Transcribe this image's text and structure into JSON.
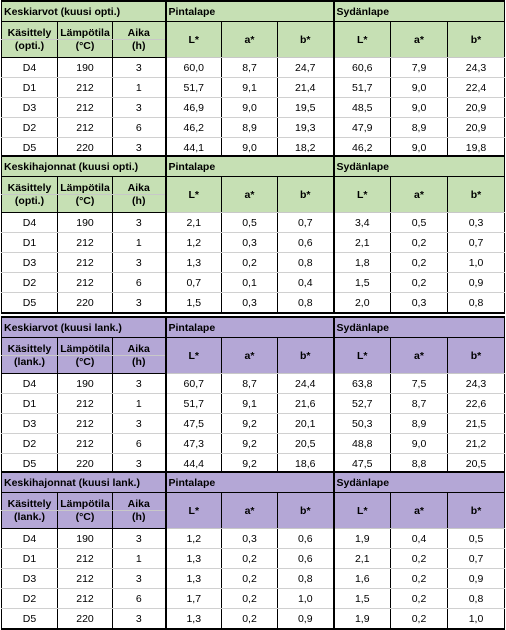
{
  "blocks": [
    {
      "title": "Keskiarvot (kuusi opti.)",
      "group1": "Pintalape",
      "group2": "Sydänlape",
      "col_kasittely": [
        "Käsittely",
        "(opti.)"
      ],
      "col_lampotila": [
        "Lämpötila",
        "(°C)"
      ],
      "col_aika": [
        "Aika",
        "(h)"
      ],
      "metrics": [
        "L*",
        "a*",
        "b*",
        "L*",
        "a*",
        "b*"
      ],
      "rows": [
        [
          "D4",
          "190",
          "3",
          "60,0",
          "8,7",
          "24,7",
          "60,6",
          "7,9",
          "24,3"
        ],
        [
          "D1",
          "212",
          "1",
          "51,7",
          "9,1",
          "21,4",
          "51,7",
          "9,0",
          "22,4"
        ],
        [
          "D3",
          "212",
          "3",
          "46,9",
          "9,0",
          "19,5",
          "48,5",
          "9,0",
          "20,9"
        ],
        [
          "D2",
          "212",
          "6",
          "46,2",
          "8,9",
          "19,3",
          "47,9",
          "8,9",
          "20,9"
        ],
        [
          "D5",
          "220",
          "3",
          "44,1",
          "9,0",
          "18,2",
          "46,2",
          "9,0",
          "19,8"
        ]
      ]
    },
    {
      "title": "Keskihajonnat (kuusi opti.)",
      "group1": "Pintalape",
      "group2": "Sydänlape",
      "col_kasittely": [
        "Käsittely",
        "(opti.)"
      ],
      "col_lampotila": [
        "Lämpötila",
        "(°C)"
      ],
      "col_aika": [
        "Aika",
        "(h)"
      ],
      "metrics": [
        "L*",
        "a*",
        "b*",
        "L*",
        "a*",
        "b*"
      ],
      "rows": [
        [
          "D4",
          "190",
          "3",
          "2,1",
          "0,5",
          "0,7",
          "3,4",
          "0,5",
          "0,3"
        ],
        [
          "D1",
          "212",
          "1",
          "1,2",
          "0,3",
          "0,6",
          "2,1",
          "0,2",
          "0,7"
        ],
        [
          "D3",
          "212",
          "3",
          "1,3",
          "0,2",
          "0,8",
          "1,8",
          "0,2",
          "1,0"
        ],
        [
          "D2",
          "212",
          "6",
          "0,7",
          "0,1",
          "0,4",
          "1,5",
          "0,2",
          "0,9"
        ],
        [
          "D5",
          "220",
          "3",
          "1,5",
          "0,3",
          "0,8",
          "2,0",
          "0,3",
          "0,8"
        ]
      ]
    },
    {
      "title": "Keskiarvot (kuusi lank.)",
      "group1": "Pintalape",
      "group2": "Sydänlape",
      "col_kasittely": [
        "Käsittely",
        "(lank.)"
      ],
      "col_lampotila": [
        "Lämpötila",
        "(°C)"
      ],
      "col_aika": [
        "Aika",
        "(h)"
      ],
      "metrics": [
        "L*",
        "a*",
        "b*",
        "L*",
        "a*",
        "b*"
      ],
      "rows": [
        [
          "D4",
          "190",
          "3",
          "60,7",
          "8,7",
          "24,4",
          "63,8",
          "7,5",
          "24,3"
        ],
        [
          "D1",
          "212",
          "1",
          "51,7",
          "9,1",
          "21,6",
          "52,7",
          "8,7",
          "22,6"
        ],
        [
          "D3",
          "212",
          "3",
          "47,5",
          "9,2",
          "20,1",
          "50,3",
          "8,9",
          "21,5"
        ],
        [
          "D2",
          "212",
          "6",
          "47,3",
          "9,2",
          "20,5",
          "48,8",
          "9,0",
          "21,2"
        ],
        [
          "D5",
          "220",
          "3",
          "44,4",
          "9,2",
          "18,6",
          "47,5",
          "8,8",
          "20,5"
        ]
      ]
    },
    {
      "title": "Keskihajonnat (kuusi lank.)",
      "group1": "Pintalape",
      "group2": "Sydänlape",
      "col_kasittely": [
        "Käsittely",
        "(lank.)"
      ],
      "col_lampotila": [
        "Lämpötila",
        "(°C)"
      ],
      "col_aika": [
        "Aika",
        "(h)"
      ],
      "metrics": [
        "L*",
        "a*",
        "b*",
        "L*",
        "a*",
        "b*"
      ],
      "rows": [
        [
          "D4",
          "190",
          "3",
          "1,2",
          "0,3",
          "0,6",
          "1,9",
          "0,4",
          "0,5"
        ],
        [
          "D1",
          "212",
          "1",
          "1,3",
          "0,2",
          "0,6",
          "2,1",
          "0,2",
          "0,7"
        ],
        [
          "D3",
          "212",
          "3",
          "1,3",
          "0,2",
          "0,8",
          "1,6",
          "0,2",
          "0,9"
        ],
        [
          "D2",
          "212",
          "6",
          "1,7",
          "0,2",
          "1,0",
          "1,5",
          "0,2",
          "0,8"
        ],
        [
          "D5",
          "220",
          "3",
          "1,3",
          "0,2",
          "0,9",
          "1,9",
          "0,2",
          "1,0"
        ]
      ]
    }
  ],
  "colors": {
    "green_header": "#c6e0b4",
    "purple_header": "#b4a7d6"
  }
}
